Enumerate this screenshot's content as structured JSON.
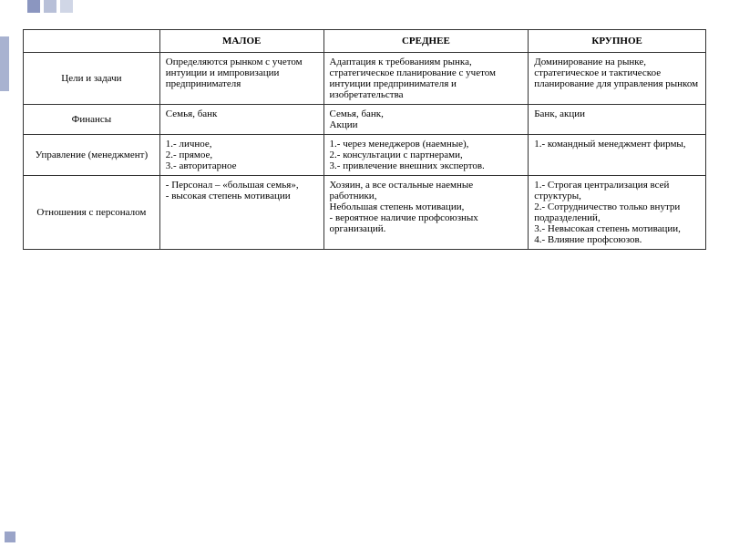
{
  "decorations": {
    "top_colors": [
      "#8b96c0",
      "#b8c0d8",
      "#d0d6e6"
    ],
    "left_color": "#a8b2d0",
    "bottom_color": "#9aa4c8"
  },
  "table": {
    "type": "table",
    "border_color": "#333333",
    "background_color": "#ffffff",
    "font_family": "Times New Roman",
    "font_size": 11,
    "header_font_weight": "bold",
    "columns": [
      {
        "label": "",
        "width": "20%",
        "align": "center"
      },
      {
        "label": "МАЛОЕ",
        "width": "24%",
        "align": "center"
      },
      {
        "label": "СРЕДНЕЕ",
        "width": "30%",
        "align": "center"
      },
      {
        "label": "КРУПНОЕ",
        "width": "26%",
        "align": "center"
      }
    ],
    "rows": [
      {
        "label": "Цели и задачи",
        "c1": "Определяются рынком с учетом интуиции и импровизации предпринимателя",
        "c2": "Адаптация к требованиям рынка, стратегическое планирование с учетом интуиции предпринимателя и изобретательства",
        "c3": "Доминирование на рынке, стратегическое и тактическое планирование для управления рынком"
      },
      {
        "label": "Финансы",
        "c1": "Семья, банк",
        "c2": "Семья, банк,\nАкции",
        "c3": "Банк, акции"
      },
      {
        "label": "Управление (менеджмент)",
        "c1": "1.-  личное,\n2.-  прямое,\n3.-  авторитарное",
        "c2": "1.-  через менеджеров (наемные),\n2.-  консультации с партнерами,\n3.-  привлечение внешних экспертов.",
        "c3": "1.-  командный менеджмент фирмы,"
      },
      {
        "label": "Отношения с персоналом",
        "c1": "- Персонал – «большая семья»,\n- высокая степень мотивации",
        "c2": "Хозяин, а все остальные наемные работники,\nНебольшая степень мотивации,\n- вероятное наличие профсоюзных организаций.",
        "c3": "1.-  Строгая централизация всей структуры,\n2.-  Сотрудничество только внутри подразделений,\n3.-  Невысокая степень мотивации,\n4.-  Влияние профсоюзов."
      }
    ]
  }
}
